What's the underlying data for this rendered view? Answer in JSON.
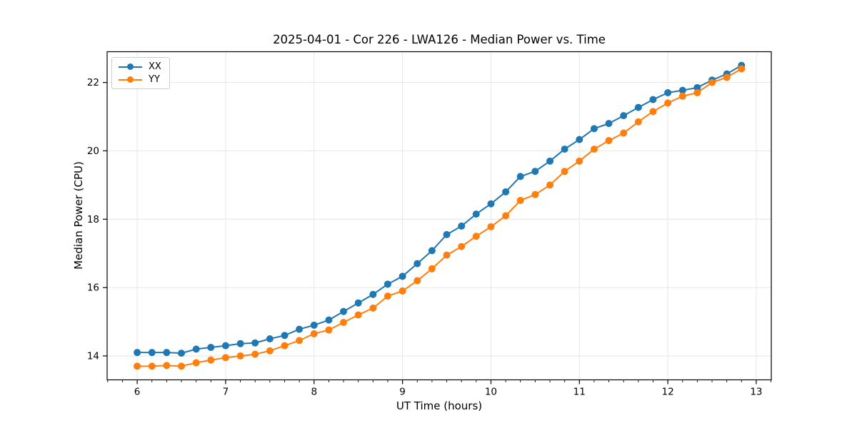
{
  "page": {
    "background": "#ffffff"
  },
  "chart_data": {
    "type": "line",
    "title": "2025-04-01 - Cor 226 - LWA126 - Median Power vs. Time",
    "xlabel": "UT Time (hours)",
    "ylabel": "Median Power (CPU)",
    "xlim": [
      5.66,
      13.17
    ],
    "ylim": [
      13.3,
      22.9
    ],
    "xticks": [
      6,
      7,
      8,
      9,
      10,
      11,
      12,
      13
    ],
    "yticks": [
      14,
      16,
      18,
      20,
      22
    ],
    "x_minor_interval": 0.1667,
    "grid": true,
    "grid_color": "#e6e6e6",
    "spine_color": "#000000",
    "legend_position": "upper-left",
    "x": [
      6.0,
      6.167,
      6.333,
      6.5,
      6.667,
      6.833,
      7.0,
      7.167,
      7.333,
      7.5,
      7.667,
      7.833,
      8.0,
      8.167,
      8.333,
      8.5,
      8.667,
      8.833,
      9.0,
      9.167,
      9.333,
      9.5,
      9.667,
      9.833,
      10.0,
      10.167,
      10.333,
      10.5,
      10.667,
      10.833,
      11.0,
      11.167,
      11.333,
      11.5,
      11.667,
      11.833,
      12.0,
      12.167,
      12.333,
      12.5,
      12.667,
      12.833
    ],
    "series": [
      {
        "name": "XX",
        "color": "#1f77b4",
        "marker": "circle",
        "values": [
          14.1,
          14.1,
          14.1,
          14.08,
          14.2,
          14.25,
          14.3,
          14.36,
          14.38,
          14.5,
          14.6,
          14.78,
          14.9,
          15.05,
          15.3,
          15.55,
          15.8,
          16.1,
          16.33,
          16.7,
          17.08,
          17.55,
          17.8,
          18.15,
          18.45,
          18.8,
          19.25,
          19.4,
          19.7,
          20.05,
          20.33,
          20.65,
          20.8,
          21.03,
          21.27,
          21.5,
          21.7,
          21.77,
          21.85,
          22.07,
          22.25,
          22.5
        ]
      },
      {
        "name": "YY",
        "color": "#ff7f0e",
        "marker": "circle",
        "values": [
          13.7,
          13.7,
          13.72,
          13.7,
          13.8,
          13.88,
          13.95,
          14.0,
          14.05,
          14.15,
          14.3,
          14.45,
          14.65,
          14.76,
          14.98,
          15.2,
          15.4,
          15.75,
          15.9,
          16.2,
          16.55,
          16.95,
          17.2,
          17.5,
          17.78,
          18.1,
          18.55,
          18.72,
          19.0,
          19.4,
          19.7,
          20.05,
          20.3,
          20.52,
          20.85,
          21.15,
          21.4,
          21.6,
          21.7,
          22.0,
          22.15,
          22.4
        ]
      }
    ]
  }
}
